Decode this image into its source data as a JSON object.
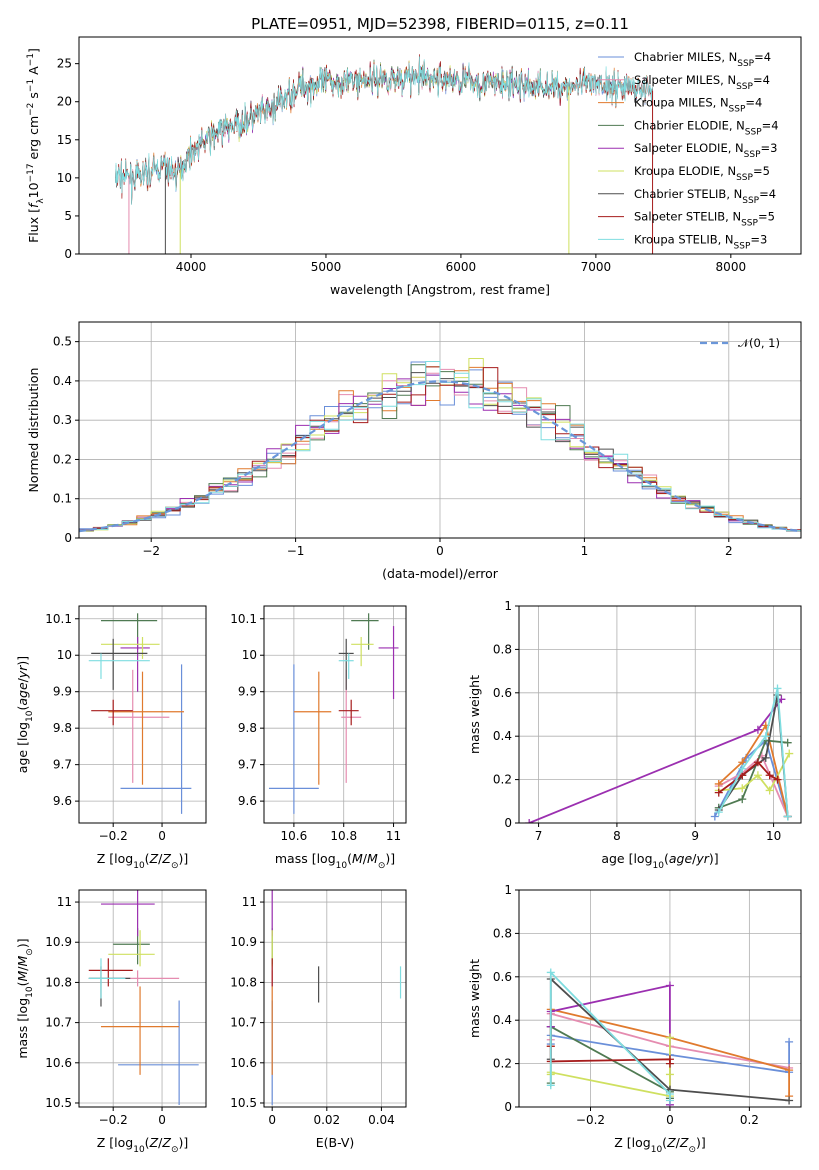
{
  "colors": {
    "Chabrier MILES": "#6a8fd9",
    "Salpeter MILES": "#e58cb0",
    "Kroupa MILES": "#e07a2e",
    "Chabrier ELODIE": "#4f7a52",
    "Salpeter ELODIE": "#9b2fb0",
    "Kroupa ELODIE": "#cfe060",
    "Chabrier STELIB": "#4d4d4d",
    "Salpeter STELIB": "#a61c1c",
    "Kroupa STELIB": "#7fdde0"
  },
  "chart_data": [
    {
      "id": "spectrum",
      "type": "line",
      "title": "PLATE=0951, MJD=52398, FIBERID=0115, z=0.11",
      "xlabel": "wavelength [Angstrom, rest frame]",
      "ylabel": "Flux [f_λ10^{-17} erg cm^{-2} s^{-1} A^{-1}]",
      "xlim": [
        3170,
        8520
      ],
      "ylim": [
        0,
        28.5
      ],
      "xticks": [
        4000,
        5000,
        6000,
        7000,
        8000
      ],
      "yticks": [
        0,
        5,
        10,
        15,
        20,
        25
      ],
      "legend_position": "top-right",
      "legend": [
        {
          "name": "Chabrier MILES, N_SSP=4",
          "lib": "Chabrier MILES"
        },
        {
          "name": "Salpeter MILES, N_SSP=4",
          "lib": "Salpeter MILES"
        },
        {
          "name": "Kroupa MILES, N_SSP=4",
          "lib": "Kroupa MILES"
        },
        {
          "name": "Chabrier ELODIE, N_SSP=4",
          "lib": "Chabrier ELODIE"
        },
        {
          "name": "Salpeter ELODIE, N_SSP=3",
          "lib": "Salpeter ELODIE"
        },
        {
          "name": "Kroupa ELODIE, N_SSP=5",
          "lib": "Kroupa ELODIE"
        },
        {
          "name": "Chabrier STELIB, N_SSP=4",
          "lib": "Chabrier STELIB"
        },
        {
          "name": "Salpeter STELIB, N_SSP=5",
          "lib": "Salpeter STELIB"
        },
        {
          "name": "Kroupa STELIB, N_SSP=3",
          "lib": "Kroupa STELIB"
        }
      ],
      "continuum": {
        "wavelength": [
          3400,
          3600,
          3800,
          3900,
          4000,
          4200,
          4400,
          4600,
          4800,
          5000,
          5200,
          5400,
          5600,
          5800,
          6000,
          6200,
          6400,
          6600,
          6800,
          7000,
          7200,
          7400,
          7600,
          7800,
          8000,
          8200,
          8400
        ],
        "flux": [
          10.5,
          10.0,
          11.5,
          10.5,
          13.5,
          16.0,
          17.5,
          19.0,
          22.0,
          22.5,
          22.8,
          23.0,
          23.2,
          23.0,
          22.8,
          22.5,
          22.2,
          22.0,
          22.0,
          22.3,
          22.0,
          21.5,
          21.0,
          20.8,
          20.5,
          20.3,
          20.0
        ]
      },
      "dropouts": [
        {
          "lib": "Salpeter MILES",
          "wavelength": 3540
        },
        {
          "lib": "Chabrier STELIB",
          "wavelength": 3810
        },
        {
          "lib": "Kroupa ELODIE",
          "wavelength": 3920
        },
        {
          "lib": "Kroupa ELODIE",
          "wavelength": 6800
        },
        {
          "lib": "Salpeter STELIB",
          "wavelength": 7420
        }
      ]
    },
    {
      "id": "residuals",
      "type": "bar",
      "xlabel": "(data-model)/error",
      "ylabel": "Normed distribution",
      "xlim": [
        -2.5,
        2.5
      ],
      "ylim": [
        0,
        0.55
      ],
      "xticks": [
        -2,
        -1,
        0,
        1,
        2
      ],
      "yticks": [
        0.0,
        0.1,
        0.2,
        0.3,
        0.4,
        0.5
      ],
      "bin_width": 0.1,
      "reference_curve": "N(0,1)",
      "legend": "𝒩(0, 1)",
      "legend_position": "top-right"
    },
    {
      "id": "age-vs-Z",
      "type": "scatter",
      "xlabel": "Z [log10(Z/Z⊙)]",
      "ylabel": "age [log10(age/yr)]",
      "xlim": [
        -0.34,
        0.18
      ],
      "ylim": [
        9.54,
        10.135
      ],
      "xticks": [
        -0.2,
        0.0
      ],
      "yticks": [
        9.6,
        9.7,
        9.8,
        9.9,
        10.0,
        10.1
      ],
      "points": [
        {
          "lib": "Chabrier MILES",
          "x": 0.08,
          "xerr": [
            0.25,
            0.04
          ],
          "y": 9.635,
          "yerr": [
            0.07,
            0.34
          ]
        },
        {
          "lib": "Salpeter MILES",
          "x": -0.12,
          "xerr": [
            0.1,
            0.15
          ],
          "y": 9.83,
          "yerr": [
            0.18,
            0.13
          ]
        },
        {
          "lib": "Kroupa MILES",
          "x": -0.08,
          "xerr": [
            0.14,
            0.17
          ],
          "y": 9.845,
          "yerr": [
            0.2,
            0.11
          ]
        },
        {
          "lib": "Chabrier ELODIE",
          "x": -0.1,
          "xerr": [
            0.15,
            0.08
          ],
          "y": 10.095,
          "yerr": [
            0.08,
            0.02
          ]
        },
        {
          "lib": "Salpeter ELODIE",
          "x": -0.1,
          "xerr": [
            0.07,
            0.05
          ],
          "y": 10.02,
          "yerr": [
            0.12,
            0.03
          ]
        },
        {
          "lib": "Kroupa ELODIE",
          "x": -0.08,
          "xerr": [
            0.17,
            0.07
          ],
          "y": 10.03,
          "yerr": [
            0.04,
            0.02
          ]
        },
        {
          "lib": "Chabrier STELIB",
          "x": -0.2,
          "xerr": [
            0.09,
            0.14
          ],
          "y": 10.005,
          "yerr": [
            0.1,
            0.04
          ]
        },
        {
          "lib": "Salpeter STELIB",
          "x": -0.2,
          "xerr": [
            0.09,
            0.08
          ],
          "y": 9.848,
          "yerr": [
            0.04,
            0.03
          ]
        },
        {
          "lib": "Kroupa STELIB",
          "x": -0.25,
          "xerr": [
            0.05,
            0.2
          ],
          "y": 9.985,
          "yerr": [
            0.05,
            0.02
          ]
        }
      ]
    },
    {
      "id": "age-vs-mass",
      "type": "scatter",
      "xlabel": "mass [log10(M/M⊙)]",
      "ylabel": "",
      "xlim": [
        10.48,
        11.05
      ],
      "ylim": [
        9.54,
        10.135
      ],
      "xticks": [
        10.6,
        10.8,
        11.0
      ],
      "yticks": [
        9.6,
        9.7,
        9.8,
        9.9,
        10.0,
        10.1
      ],
      "points": [
        {
          "lib": "Chabrier MILES",
          "x": 10.6,
          "xerr": [
            0.1,
            0.1
          ],
          "y": 9.635,
          "yerr": [
            0.07,
            0.34
          ]
        },
        {
          "lib": "Salpeter MILES",
          "x": 10.81,
          "xerr": [
            0.02,
            0.06
          ],
          "y": 9.83,
          "yerr": [
            0.18,
            0.13
          ]
        },
        {
          "lib": "Kroupa MILES",
          "x": 10.7,
          "xerr": [
            0.1,
            0.05
          ],
          "y": 9.845,
          "yerr": [
            0.2,
            0.11
          ]
        },
        {
          "lib": "Chabrier ELODIE",
          "x": 10.9,
          "xerr": [
            0.07,
            0.04
          ],
          "y": 10.095,
          "yerr": [
            0.08,
            0.02
          ]
        },
        {
          "lib": "Salpeter ELODIE",
          "x": 11.0,
          "xerr": [
            0.06,
            0.02
          ],
          "y": 10.02,
          "yerr": [
            0.14,
            0.06
          ]
        },
        {
          "lib": "Kroupa ELODIE",
          "x": 10.87,
          "xerr": [
            0.04,
            0.05
          ],
          "y": 10.03,
          "yerr": [
            0.06,
            0.02
          ]
        },
        {
          "lib": "Chabrier STELIB",
          "x": 10.81,
          "xerr": [
            0.03,
            0.03
          ],
          "y": 10.005,
          "yerr": [
            0.1,
            0.04
          ]
        },
        {
          "lib": "Salpeter STELIB",
          "x": 10.83,
          "xerr": [
            0.05,
            0.03
          ],
          "y": 9.848,
          "yerr": [
            0.04,
            0.03
          ]
        },
        {
          "lib": "Kroupa STELIB",
          "x": 10.82,
          "xerr": [
            0.04,
            0.02
          ],
          "y": 9.985,
          "yerr": [
            0.05,
            0.02
          ]
        }
      ]
    },
    {
      "id": "mass-weight-vs-age",
      "type": "line",
      "xlabel": "age [log10(age/yr)]",
      "ylabel": "mass weight",
      "xlim": [
        6.75,
        10.35
      ],
      "ylim": [
        0,
        1.0
      ],
      "xticks": [
        7,
        8,
        9,
        10
      ],
      "yticks": [
        0.0,
        0.2,
        0.4,
        0.6,
        0.8,
        1.0
      ],
      "series": [
        {
          "lib": "Chabrier MILES",
          "x": [
            9.25,
            9.65,
            9.9,
            10.18
          ],
          "y": [
            0.03,
            0.3,
            0.38,
            0.03
          ]
        },
        {
          "lib": "Salpeter MILES",
          "x": [
            9.3,
            9.6,
            9.85,
            10.18
          ],
          "y": [
            0.17,
            0.23,
            0.31,
            0.03
          ]
        },
        {
          "lib": "Kroupa MILES",
          "x": [
            9.3,
            9.6,
            9.9,
            10.18
          ],
          "y": [
            0.18,
            0.28,
            0.45,
            0.03
          ]
        },
        {
          "lib": "Chabrier ELODIE",
          "x": [
            9.3,
            9.6,
            9.9,
            10.18
          ],
          "y": [
            0.07,
            0.11,
            0.38,
            0.37
          ]
        },
        {
          "lib": "Salpeter ELODIE",
          "x": [
            6.88,
            9.8,
            10.1
          ],
          "y": [
            0.0,
            0.43,
            0.57
          ]
        },
        {
          "lib": "Kroupa ELODIE",
          "x": [
            9.3,
            9.6,
            9.8,
            9.95,
            10.2
          ],
          "y": [
            0.15,
            0.16,
            0.22,
            0.15,
            0.32
          ]
        },
        {
          "lib": "Chabrier STELIB",
          "x": [
            9.3,
            9.6,
            9.9,
            10.05,
            10.18
          ],
          "y": [
            0.06,
            0.22,
            0.3,
            0.59,
            0.03
          ]
        },
        {
          "lib": "Salpeter STELIB",
          "x": [
            9.3,
            9.6,
            9.8,
            9.95,
            10.05
          ],
          "y": [
            0.14,
            0.22,
            0.28,
            0.22,
            0.2
          ]
        },
        {
          "lib": "Kroupa STELIB",
          "x": [
            9.3,
            9.6,
            9.9,
            10.05,
            10.18
          ],
          "y": [
            0.05,
            0.25,
            0.4,
            0.62,
            0.03
          ]
        }
      ]
    },
    {
      "id": "mass-vs-Z",
      "type": "scatter",
      "xlabel": "Z [log10(Z/Z⊙)]",
      "ylabel": "mass [log10(M/M⊙)]",
      "xlim": [
        -0.34,
        0.18
      ],
      "ylim": [
        10.49,
        11.03
      ],
      "xticks": [
        -0.2,
        0.0
      ],
      "yticks": [
        10.5,
        10.6,
        10.7,
        10.8,
        10.9,
        11.0
      ],
      "points": [
        {
          "lib": "Chabrier MILES",
          "x": 0.07,
          "xerr": [
            0.25,
            0.08
          ],
          "y": 10.595,
          "yerr": [
            0.1,
            0.16
          ]
        },
        {
          "lib": "Salpeter MILES",
          "x": -0.1,
          "xerr": [
            0.1,
            0.17
          ],
          "y": 10.81,
          "yerr": [
            0.02,
            0.02
          ]
        },
        {
          "lib": "Kroupa MILES",
          "x": -0.09,
          "xerr": [
            0.16,
            0.16
          ],
          "y": 10.69,
          "yerr": [
            0.12,
            0.1
          ]
        },
        {
          "lib": "Chabrier ELODIE",
          "x": -0.1,
          "xerr": [
            0.1,
            0.05
          ],
          "y": 10.895,
          "yerr": [
            0.05,
            0.04
          ]
        },
        {
          "lib": "Salpeter ELODIE",
          "x": -0.1,
          "xerr": [
            0.15,
            0.07
          ],
          "y": 10.995,
          "yerr": [
            0.08,
            0.04
          ]
        },
        {
          "lib": "Kroupa ELODIE",
          "x": -0.09,
          "xerr": [
            0.13,
            0.06
          ],
          "y": 10.87,
          "yerr": [
            0.03,
            0.06
          ]
        },
        {
          "lib": "Chabrier STELIB",
          "x": -0.25,
          "xerr": [
            0.05,
            0.12
          ],
          "y": 10.81,
          "yerr": [
            0.07,
            0.03
          ]
        },
        {
          "lib": "Salpeter STELIB",
          "x": -0.22,
          "xerr": [
            0.08,
            0.1
          ],
          "y": 10.83,
          "yerr": [
            0.04,
            0.03
          ]
        },
        {
          "lib": "Kroupa STELIB",
          "x": -0.25,
          "xerr": [
            0.05,
            0.1
          ],
          "y": 10.81,
          "yerr": [
            0.05,
            0.05
          ]
        }
      ]
    },
    {
      "id": "mass-vs-EBV",
      "type": "scatter",
      "xlabel": "E(B-V)",
      "ylabel": "",
      "xlim": [
        -0.003,
        0.049
      ],
      "ylim": [
        10.49,
        11.03
      ],
      "xticks": [
        0.0,
        0.02,
        0.04
      ],
      "yticks": [
        10.5,
        10.6,
        10.7,
        10.8,
        10.9,
        11.0
      ],
      "points": [
        {
          "lib": "Chabrier MILES",
          "x": 0.0,
          "y": 10.595,
          "yerr": [
            0.1,
            0.16
          ]
        },
        {
          "lib": "Salpeter MILES",
          "x": 0.0,
          "y": 10.81,
          "yerr": [
            0.02,
            0.02
          ]
        },
        {
          "lib": "Kroupa MILES",
          "x": 0.0,
          "y": 10.69,
          "yerr": [
            0.12,
            0.1
          ]
        },
        {
          "lib": "Chabrier ELODIE",
          "x": 0.0,
          "y": 10.895,
          "yerr": [
            0.05,
            0.04
          ]
        },
        {
          "lib": "Salpeter ELODIE",
          "x": 0.0,
          "y": 10.995,
          "yerr": [
            0.08,
            0.04
          ]
        },
        {
          "lib": "Kroupa ELODIE",
          "x": 0.0,
          "y": 10.87,
          "yerr": [
            0.03,
            0.06
          ]
        },
        {
          "lib": "Chabrier STELIB",
          "x": 0.017,
          "y": 10.8,
          "yerr": [
            0.05,
            0.04
          ]
        },
        {
          "lib": "Salpeter STELIB",
          "x": 0.0,
          "y": 10.83,
          "yerr": [
            0.04,
            0.03
          ]
        },
        {
          "lib": "Kroupa STELIB",
          "x": 0.047,
          "y": 10.8,
          "yerr": [
            0.04,
            0.04
          ]
        }
      ]
    },
    {
      "id": "mass-weight-vs-Z",
      "type": "line",
      "xlabel": "Z [log10(Z/Z⊙)]",
      "ylabel": "mass weight",
      "xlim": [
        -0.38,
        0.33
      ],
      "ylim": [
        0,
        1.0
      ],
      "xticks": [
        -0.2,
        0.0,
        0.2
      ],
      "yticks": [
        0.0,
        0.2,
        0.4,
        0.6,
        0.8,
        1.0
      ],
      "series": [
        {
          "lib": "Chabrier MILES",
          "x": [
            -0.3,
            -0.3,
            0.0,
            0.3,
            0.3
          ],
          "y": [
            0.29,
            0.33,
            0.24,
            0.16,
            0.3
          ]
        },
        {
          "lib": "Salpeter MILES",
          "x": [
            -0.3,
            -0.3,
            0.0,
            0.3
          ],
          "y": [
            0.31,
            0.43,
            0.28,
            0.18
          ]
        },
        {
          "lib": "Kroupa MILES",
          "x": [
            -0.3,
            -0.3,
            0.0,
            0.3,
            0.3
          ],
          "y": [
            0.28,
            0.45,
            0.32,
            0.17,
            0.05
          ]
        },
        {
          "lib": "Chabrier ELODIE",
          "x": [
            -0.3,
            -0.3,
            0.0,
            0.0
          ],
          "y": [
            0.11,
            0.37,
            0.07,
            0.04
          ]
        },
        {
          "lib": "Salpeter ELODIE",
          "x": [
            -0.3,
            -0.3,
            0.0,
            0.0
          ],
          "y": [
            0.37,
            0.44,
            0.56,
            0.01
          ]
        },
        {
          "lib": "Kroupa ELODIE",
          "x": [
            -0.3,
            -0.3,
            0.0,
            0.0,
            0.0
          ],
          "y": [
            0.15,
            0.16,
            0.05,
            0.15,
            0.32
          ]
        },
        {
          "lib": "Chabrier STELIB",
          "x": [
            -0.3,
            -0.3,
            0.0,
            0.3
          ],
          "y": [
            0.22,
            0.59,
            0.08,
            0.03
          ]
        },
        {
          "lib": "Salpeter STELIB",
          "x": [
            -0.3,
            -0.3,
            0.0,
            0.0
          ],
          "y": [
            0.28,
            0.21,
            0.22,
            0.2
          ]
        },
        {
          "lib": "Kroupa STELIB",
          "x": [
            -0.3,
            -0.3,
            0.0,
            0.0
          ],
          "y": [
            0.1,
            0.62,
            0.06,
            0.03
          ]
        }
      ]
    }
  ]
}
